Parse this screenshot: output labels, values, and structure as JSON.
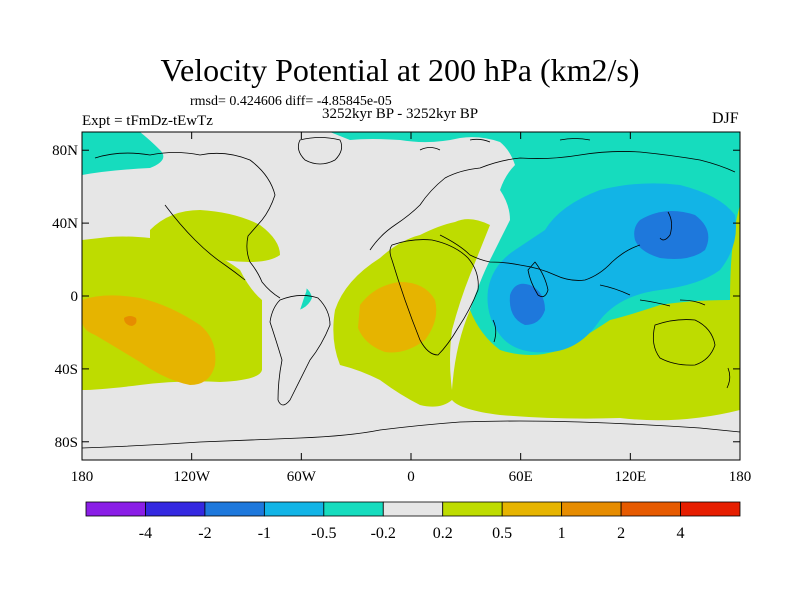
{
  "title": "Velocity Potential at 200 hPa (km2/s)",
  "stats": "rmsd= 0.424606 diff= -4.85845e-05",
  "period": "3252kyr BP - 3252kyr BP",
  "experiment": "Expt = tFmDz-tEwTz",
  "season": "DJF",
  "map": {
    "projection": "cylindrical-equidistant",
    "lon_range": [
      -180,
      180
    ],
    "lat_range": [
      -90,
      90
    ],
    "y_ticks": [
      {
        "lat": 80,
        "label": "80N"
      },
      {
        "lat": 40,
        "label": "40N"
      },
      {
        "lat": 0,
        "label": "0"
      },
      {
        "lat": -40,
        "label": "40S"
      },
      {
        "lat": -80,
        "label": "80S"
      }
    ],
    "x_ticks": [
      {
        "lon": -180,
        "label": "180"
      },
      {
        "lon": -120,
        "label": "120W"
      },
      {
        "lon": -60,
        "label": "60W"
      },
      {
        "lon": 0,
        "label": "0"
      },
      {
        "lon": 60,
        "label": "60E"
      },
      {
        "lon": 120,
        "label": "120E"
      },
      {
        "lon": 180,
        "label": "180"
      }
    ]
  },
  "colorbar": {
    "colors": [
      "#8a1ee6",
      "#3428e0",
      "#1e78dc",
      "#12b4e6",
      "#16dcbe",
      "#e6e6e6",
      "#bedc00",
      "#e6b400",
      "#e68c00",
      "#e65a00",
      "#e61e00"
    ],
    "labels": [
      "-4",
      "-2",
      "-1",
      "-0.5",
      "-0.2",
      "0.2",
      "0.5",
      "1",
      "2",
      "4"
    ]
  },
  "colors": {
    "neutral": "#e6e6e6",
    "pos_weak": "#bedc00",
    "pos_mid": "#e6b400",
    "pos_strong": "#e68c00",
    "pos_max": "#e65a00",
    "neg_weak": "#16dcbe",
    "neg_mid": "#12b4e6",
    "neg_strong": "#1e78dc"
  }
}
